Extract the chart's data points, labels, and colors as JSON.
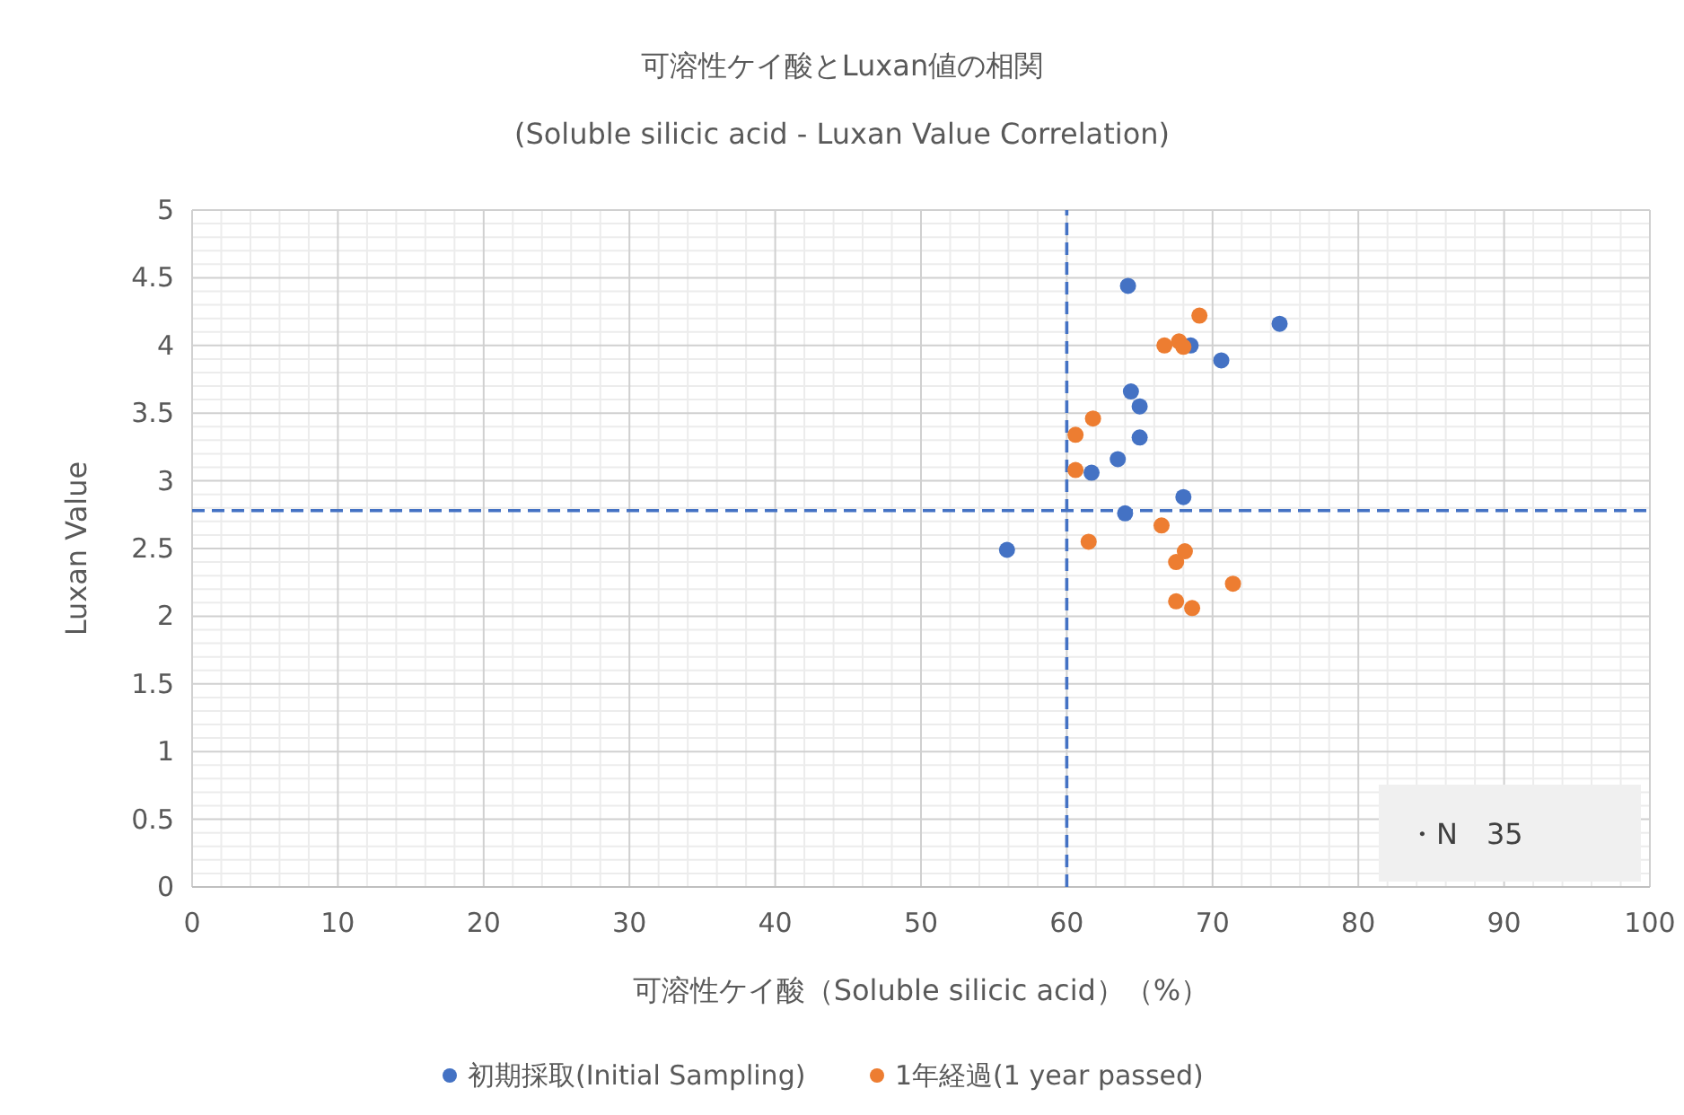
{
  "chart_data": {
    "type": "scatter",
    "title": "可溶性ケイ酸とLuxan値の相関",
    "subtitle": "(Soluble silicic acid - Luxan Value Correlation)",
    "xlabel": "可溶性ケイ酸（Soluble silicic acid）（%）",
    "ylabel": "Luxan Value",
    "xlim": [
      0,
      100
    ],
    "xticks": [
      0,
      10,
      20,
      30,
      40,
      50,
      60,
      70,
      80,
      90,
      100
    ],
    "ylim": [
      0,
      5
    ],
    "yticks": [
      0,
      0.5,
      1,
      1.5,
      2,
      2.5,
      3,
      3.5,
      4,
      4.5,
      5
    ],
    "grid": true,
    "legend": "bottom",
    "marker": "circle",
    "series": [
      {
        "name": "初期採取(Initial Sampling)",
        "color": "#4472c4",
        "x": [
          55.9,
          64.2,
          74.6,
          68.5,
          70.6,
          64.4,
          65.0,
          65.0,
          63.5,
          61.7,
          68.0,
          64.0
        ],
        "values": [
          2.49,
          4.44,
          4.16,
          4.0,
          3.89,
          3.66,
          3.55,
          3.32,
          3.16,
          3.06,
          2.88,
          2.76
        ]
      },
      {
        "name": "1年経過(1 year passed)",
        "color": "#ed7d31",
        "x": [
          69.1,
          66.7,
          67.7,
          68.0,
          61.8,
          60.6,
          60.6,
          66.5,
          61.5,
          68.1,
          67.5,
          71.4,
          67.5,
          68.6
        ],
        "values": [
          4.22,
          4.0,
          4.03,
          3.99,
          3.46,
          3.34,
          3.08,
          2.67,
          2.55,
          2.48,
          2.4,
          2.24,
          2.11,
          2.06
        ]
      }
    ],
    "ref_lines": [
      {
        "axis": "x",
        "value": 60,
        "color": "#4472c4",
        "line_style": "dashed"
      },
      {
        "axis": "y",
        "value": 2.78,
        "color": "#4472c4",
        "line_style": "dashed"
      }
    ],
    "annotations": [
      "・N　35"
    ]
  }
}
